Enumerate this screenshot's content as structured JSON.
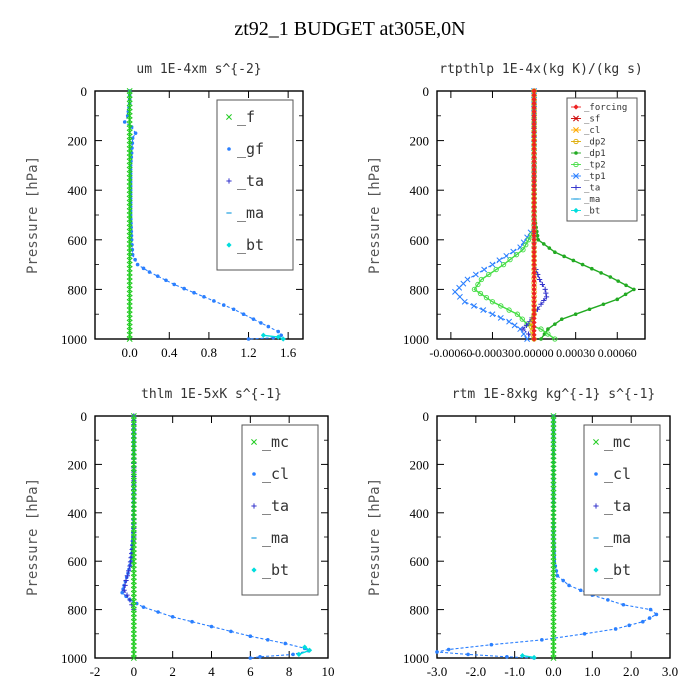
{
  "title": "zt92_1  BUDGET at305E,0N",
  "chart_data": [
    {
      "type": "line",
      "title": "um  1E-4xm s^{-2}",
      "ylabel": "Pressure [hPa]",
      "xlim": [
        -0.35,
        1.75
      ],
      "ylim": [
        1000,
        0
      ],
      "xticks": [
        "0.0",
        "0.4",
        "0.8",
        "1.2",
        "1.6"
      ],
      "xtick_values": [
        0,
        0.4,
        0.8,
        1.2,
        1.6
      ],
      "yticks": [
        "0",
        "200",
        "400",
        "600",
        "800",
        "1000"
      ],
      "ytick_values": [
        0,
        200,
        400,
        600,
        800,
        1000
      ],
      "legend_position": "top-right",
      "legend_size": "large",
      "legend": [
        {
          "label": "_f",
          "color": "#22cc22",
          "marker": "cross"
        },
        {
          "label": "_gf",
          "color": "#2a7fff",
          "marker": "dot"
        },
        {
          "label": "_ta",
          "color": "#3333cc",
          "marker": "plus"
        },
        {
          "label": "_ma",
          "color": "#20a0e0",
          "marker": "dash"
        },
        {
          "label": "_bt",
          "color": "#00dddd",
          "marker": "diamond"
        }
      ],
      "series": [
        {
          "name": "_gf",
          "color": "#2a7fff",
          "dashed": true,
          "marker": "dot",
          "points": [
            [
              0.0,
              0
            ],
            [
              0.0,
              50
            ],
            [
              -0.02,
              100
            ],
            [
              -0.05,
              125
            ],
            [
              0.02,
              145
            ],
            [
              0.06,
              170
            ],
            [
              0.03,
              190
            ],
            [
              0.02,
              250
            ],
            [
              0.01,
              300
            ],
            [
              0.01,
              400
            ],
            [
              0.01,
              500
            ],
            [
              0.02,
              600
            ],
            [
              0.03,
              660
            ],
            [
              0.08,
              700
            ],
            [
              0.2,
              730
            ],
            [
              0.45,
              780
            ],
            [
              0.75,
              830
            ],
            [
              1.05,
              880
            ],
            [
              1.25,
              920
            ],
            [
              1.4,
              950
            ],
            [
              1.5,
              970
            ],
            [
              1.53,
              985
            ],
            [
              1.45,
              995
            ],
            [
              1.2,
              1000
            ]
          ]
        },
        {
          "name": "_bt",
          "color": "#00dddd",
          "dashed": false,
          "marker": "diamond",
          "points": [
            [
              1.35,
              985
            ],
            [
              1.5,
              992
            ],
            [
              1.55,
              1000
            ]
          ]
        },
        {
          "name": "_f",
          "color": "#22cc22",
          "dashed": false,
          "marker": "cross",
          "points": [
            [
              0,
              0
            ],
            [
              0,
              100
            ],
            [
              0,
              200
            ],
            [
              0,
              300
            ],
            [
              0,
              400
            ],
            [
              0,
              500
            ],
            [
              0,
              600
            ],
            [
              0,
              700
            ],
            [
              0,
              800
            ],
            [
              0,
              900
            ],
            [
              0,
              1000
            ]
          ]
        }
      ]
    },
    {
      "type": "line",
      "title": "rtpthlp  1E-4x(kg K)/(kg s)",
      "ylabel": "Pressure [hPa]",
      "xlim": [
        -0.0007,
        0.0008
      ],
      "ylim": [
        1000,
        0
      ],
      "xticks": [
        "-0.00060",
        "-0.00030",
        "0.00000",
        "0.00030",
        "0.00060"
      ],
      "xtick_values": [
        -0.0006,
        -0.0003,
        0.0,
        0.0003,
        0.0006
      ],
      "yticks": [
        "0",
        "200",
        "400",
        "600",
        "800",
        "1000"
      ],
      "ytick_values": [
        0,
        200,
        400,
        600,
        800,
        1000
      ],
      "legend_position": "top-right",
      "legend_size": "small",
      "legend": [
        {
          "label": "_forcing",
          "color": "#ee2222",
          "marker": "diamond"
        },
        {
          "label": "_sf",
          "color": "#cc0000",
          "marker": "cross"
        },
        {
          "label": "_cl",
          "color": "#ffaa00",
          "marker": "cross"
        },
        {
          "label": "_dp2",
          "color": "#ddaa00",
          "marker": "circle"
        },
        {
          "label": "_dp1",
          "color": "#22aa22",
          "marker": "dot"
        },
        {
          "label": "_tp2",
          "color": "#44dd44",
          "marker": "circle"
        },
        {
          "label": "_tp1",
          "color": "#2a7fff",
          "marker": "cross"
        },
        {
          "label": "_ta",
          "color": "#3333cc",
          "marker": "plus"
        },
        {
          "label": "_ma",
          "color": "#20a0e0",
          "marker": "dash"
        },
        {
          "label": "_bt",
          "color": "#00dddd",
          "marker": "diamond"
        }
      ],
      "series": [
        {
          "name": "_dp1",
          "color": "#22aa22",
          "dashed": false,
          "marker": "dot",
          "points": [
            [
              0,
              0
            ],
            [
              0,
              500
            ],
            [
              3e-05,
              600
            ],
            [
              0.00015,
              650
            ],
            [
              0.00035,
              700
            ],
            [
              0.00055,
              750
            ],
            [
              0.00072,
              800
            ],
            [
              0.0006,
              840
            ],
            [
              0.0004,
              880
            ],
            [
              0.0002,
              920
            ],
            [
              0.0001,
              960
            ],
            [
              5e-05,
              1000
            ]
          ]
        },
        {
          "name": "_tp1",
          "color": "#2a7fff",
          "dashed": true,
          "marker": "cross",
          "points": [
            [
              0,
              0
            ],
            [
              0,
              550
            ],
            [
              -0.0001,
              630
            ],
            [
              -0.0003,
              700
            ],
            [
              -0.00048,
              760
            ],
            [
              -0.00057,
              810
            ],
            [
              -0.0005,
              850
            ],
            [
              -0.0003,
              900
            ],
            [
              -0.00018,
              930
            ],
            [
              -0.0001,
              960
            ],
            [
              -5e-05,
              1000
            ]
          ]
        },
        {
          "name": "_tp2",
          "color": "#44dd44",
          "dashed": false,
          "marker": "circle",
          "points": [
            [
              0,
              0
            ],
            [
              0,
              560
            ],
            [
              -8e-05,
              640
            ],
            [
              -0.00022,
              700
            ],
            [
              -0.00038,
              760
            ],
            [
              -0.00043,
              800
            ],
            [
              -0.0003,
              850
            ],
            [
              -0.00012,
              900
            ],
            [
              -5e-05,
              940
            ],
            [
              5e-05,
              960
            ],
            [
              0.0001,
              980
            ],
            [
              0.00015,
              1000
            ]
          ]
        },
        {
          "name": "_ta",
          "color": "#3333cc",
          "dashed": true,
          "marker": "plus",
          "points": [
            [
              0,
              0
            ],
            [
              0,
              700
            ],
            [
              4e-05,
              760
            ],
            [
              8e-05,
              800
            ],
            [
              9e-05,
              830
            ],
            [
              5e-05,
              860
            ],
            [
              0.0,
              900
            ],
            [
              -3e-05,
              930
            ],
            [
              -8e-05,
              960
            ],
            [
              0.0,
              1000
            ]
          ]
        },
        {
          "name": "_dp2",
          "color": "#ddaa00",
          "dashed": false,
          "marker": "circle",
          "points": [
            [
              0,
              0
            ],
            [
              0,
              900
            ],
            [
              -2e-05,
              950
            ],
            [
              0.0,
              1000
            ]
          ]
        },
        {
          "name": "_forcing",
          "color": "#ee2222",
          "dashed": false,
          "marker": "diamond",
          "points": [
            [
              0,
              0
            ],
            [
              0,
              100
            ],
            [
              0,
              200
            ],
            [
              0,
              300
            ],
            [
              0,
              400
            ],
            [
              0,
              500
            ],
            [
              0,
              600
            ],
            [
              0,
              700
            ],
            [
              0,
              800
            ],
            [
              0,
              900
            ],
            [
              0,
              1000
            ]
          ]
        }
      ]
    },
    {
      "type": "line",
      "title": "thlm  1E-5xK s^{-1}",
      "ylabel": "Pressure [hPa]",
      "xlim": [
        -2,
        10
      ],
      "ylim": [
        1000,
        0
      ],
      "xticks": [
        "-2",
        "0",
        "2",
        "4",
        "6",
        "8",
        "10"
      ],
      "xtick_values": [
        -2,
        0,
        2,
        4,
        6,
        8,
        10
      ],
      "yticks": [
        "0",
        "200",
        "400",
        "600",
        "800",
        "1000"
      ],
      "ytick_values": [
        0,
        200,
        400,
        600,
        800,
        1000
      ],
      "legend_position": "top-right",
      "legend_size": "large",
      "legend": [
        {
          "label": "_mc",
          "color": "#22cc22",
          "marker": "cross"
        },
        {
          "label": "_cl",
          "color": "#2a7fff",
          "marker": "dot"
        },
        {
          "label": "_ta",
          "color": "#3333cc",
          "marker": "plus"
        },
        {
          "label": "_ma",
          "color": "#20a0e0",
          "marker": "dash"
        },
        {
          "label": "_bt",
          "color": "#00dddd",
          "marker": "diamond"
        }
      ],
      "series": [
        {
          "name": "_cl",
          "color": "#2a7fff",
          "dashed": true,
          "marker": "dot",
          "points": [
            [
              0,
              0
            ],
            [
              0,
              100
            ],
            [
              0,
              300
            ],
            [
              -0.05,
              500
            ],
            [
              -0.15,
              600
            ],
            [
              -0.3,
              650
            ],
            [
              -0.5,
              700
            ],
            [
              -0.6,
              730
            ],
            [
              -0.2,
              760
            ],
            [
              0.5,
              790
            ],
            [
              2,
              830
            ],
            [
              4,
              870
            ],
            [
              6,
              910
            ],
            [
              7.8,
              940
            ],
            [
              8.8,
              960
            ],
            [
              9.0,
              970
            ],
            [
              8.2,
              985
            ],
            [
              6.5,
              995
            ],
            [
              6.0,
              1000
            ]
          ]
        },
        {
          "name": "_ta",
          "color": "#3333cc",
          "dashed": true,
          "marker": "plus",
          "points": [
            [
              0,
              0
            ],
            [
              0,
              500
            ],
            [
              -0.2,
              620
            ],
            [
              -0.4,
              680
            ],
            [
              -0.5,
              720
            ],
            [
              -0.2,
              760
            ],
            [
              0,
              800
            ]
          ]
        },
        {
          "name": "_bt",
          "color": "#00dddd",
          "dashed": false,
          "marker": "diamond",
          "points": [
            [
              8.8,
              955
            ],
            [
              9.05,
              968
            ],
            [
              8.5,
              985
            ]
          ]
        },
        {
          "name": "_mc",
          "color": "#22cc22",
          "dashed": false,
          "marker": "cross",
          "points": [
            [
              0,
              0
            ],
            [
              0,
              100
            ],
            [
              0,
              200
            ],
            [
              0,
              300
            ],
            [
              0,
              400
            ],
            [
              0,
              500
            ],
            [
              0,
              600
            ],
            [
              0,
              700
            ],
            [
              0,
              800
            ],
            [
              0,
              900
            ],
            [
              0,
              1000
            ]
          ]
        }
      ]
    },
    {
      "type": "line",
      "title": "rtm  1E-8xkg kg^{-1} s^{-1}",
      "ylabel": "Pressure [hPa]",
      "xlim": [
        -3.0,
        3.0
      ],
      "ylim": [
        1000,
        0
      ],
      "xticks": [
        "-3.0",
        "-2.0",
        "-1.0",
        "0.0",
        "1.0",
        "2.0",
        "3.0"
      ],
      "xtick_values": [
        -3,
        -2,
        -1,
        0,
        1,
        2,
        3
      ],
      "yticks": [
        "0",
        "200",
        "400",
        "600",
        "800",
        "1000"
      ],
      "ytick_values": [
        0,
        200,
        400,
        600,
        800,
        1000
      ],
      "legend_position": "top-right",
      "legend_size": "large",
      "legend": [
        {
          "label": "_mc",
          "color": "#22cc22",
          "marker": "cross"
        },
        {
          "label": "_cl",
          "color": "#2a7fff",
          "marker": "dot"
        },
        {
          "label": "_ta",
          "color": "#3333cc",
          "marker": "plus"
        },
        {
          "label": "_ma",
          "color": "#20a0e0",
          "marker": "dash"
        },
        {
          "label": "_bt",
          "color": "#00dddd",
          "marker": "diamond"
        }
      ],
      "series": [
        {
          "name": "_cl",
          "color": "#2a7fff",
          "dashed": true,
          "marker": "dot",
          "points": [
            [
              0,
              0
            ],
            [
              0,
              100
            ],
            [
              0,
              300
            ],
            [
              0,
              500
            ],
            [
              0.02,
              600
            ],
            [
              0.1,
              660
            ],
            [
              0.4,
              700
            ],
            [
              1.0,
              740
            ],
            [
              1.8,
              780
            ],
            [
              2.5,
              800
            ],
            [
              2.65,
              820
            ],
            [
              2.3,
              850
            ],
            [
              1.6,
              880
            ],
            [
              0.8,
              900
            ],
            [
              -0.3,
              925
            ],
            [
              -1.6,
              945
            ],
            [
              -2.7,
              965
            ],
            [
              -3.0,
              975
            ],
            [
              -2.2,
              985
            ],
            [
              -1.2,
              995
            ],
            [
              -0.5,
              1000
            ]
          ]
        },
        {
          "name": "_bt",
          "color": "#00dddd",
          "dashed": false,
          "marker": "diamond",
          "points": [
            [
              -0.8,
              990
            ],
            [
              -0.5,
              998
            ]
          ]
        },
        {
          "name": "_mc",
          "color": "#22cc22",
          "dashed": false,
          "marker": "cross",
          "points": [
            [
              0,
              0
            ],
            [
              0,
              100
            ],
            [
              0,
              200
            ],
            [
              0,
              300
            ],
            [
              0,
              400
            ],
            [
              0,
              500
            ],
            [
              0,
              600
            ],
            [
              0,
              700
            ],
            [
              0,
              800
            ],
            [
              0,
              900
            ],
            [
              0,
              1000
            ]
          ]
        }
      ]
    }
  ]
}
